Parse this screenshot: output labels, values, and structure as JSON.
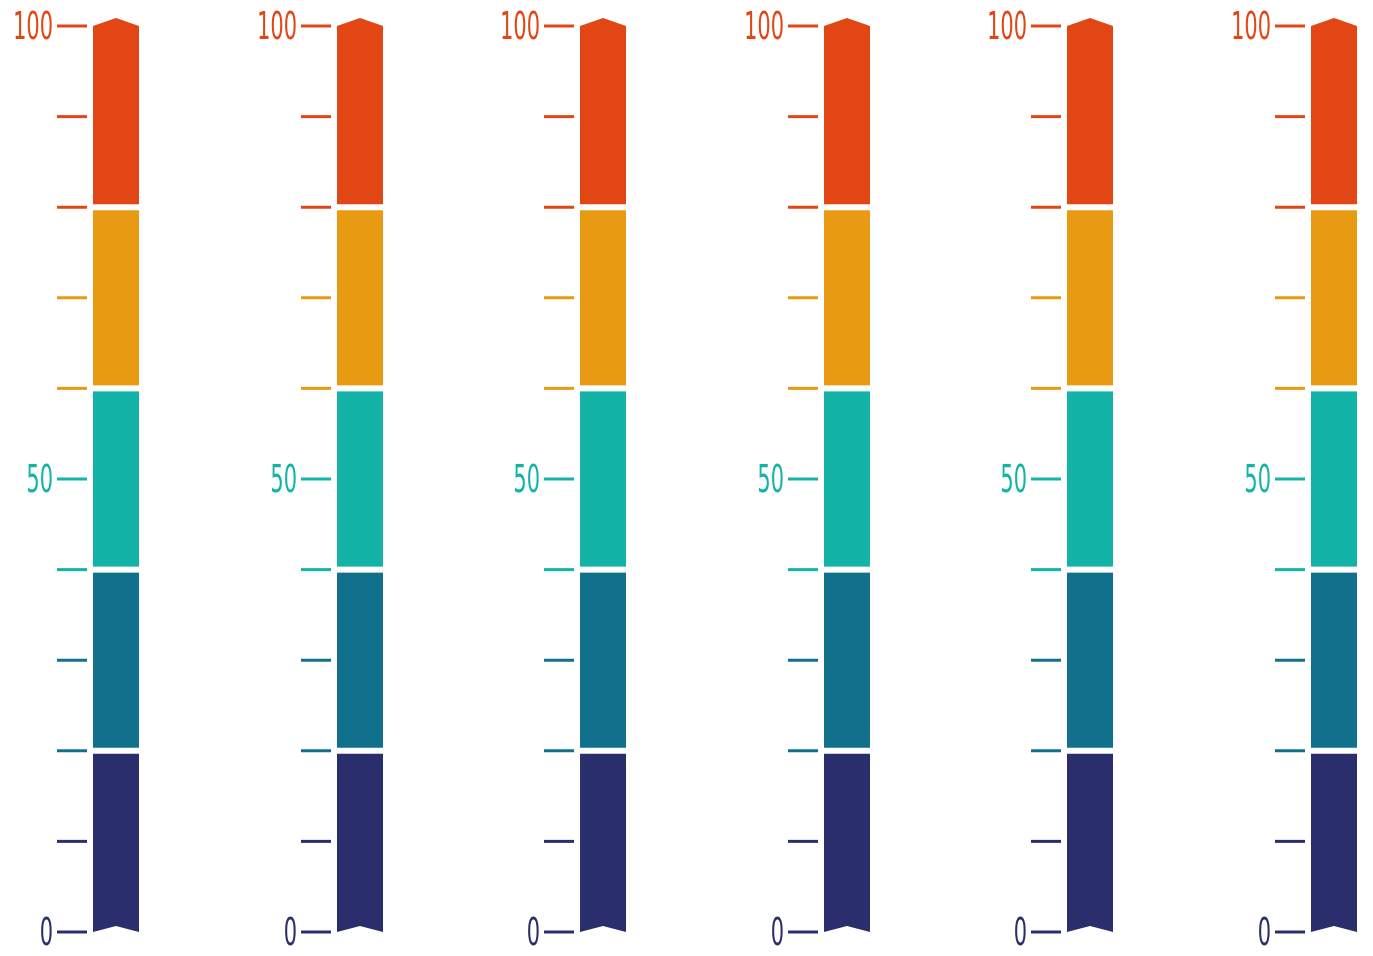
{
  "colors": {
    "segment_1_top": "#e24614",
    "segment_2": "#e89a12",
    "segment_3": "#13b3a7",
    "segment_4": "#11718d",
    "segment_5_bottom": "#2a2e6c"
  },
  "scale": {
    "min": 0,
    "max": 100,
    "labels": [
      {
        "value": 100,
        "text": "100"
      },
      {
        "value": 50,
        "text": "50"
      },
      {
        "value": 0,
        "text": "0"
      }
    ],
    "minor_tick_values": [
      90,
      80,
      70,
      60,
      50,
      40,
      30,
      20,
      10,
      0
    ],
    "segment_boundaries": [
      80,
      60,
      40,
      20
    ]
  },
  "gauges": [
    {
      "index": 1
    },
    {
      "index": 2
    },
    {
      "index": 3
    },
    {
      "index": 4
    },
    {
      "index": 5
    },
    {
      "index": 6
    }
  ]
}
